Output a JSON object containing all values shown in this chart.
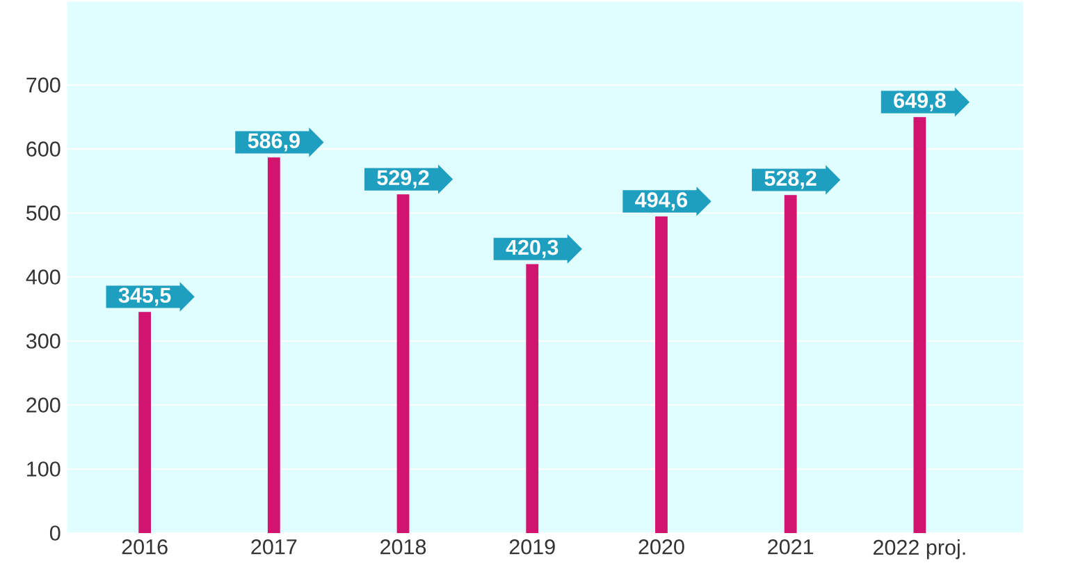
{
  "chart_data": {
    "type": "bar",
    "categories": [
      "2016",
      "2017",
      "2018",
      "2019",
      "2020",
      "2021",
      "2022 proj."
    ],
    "values": [
      345.5,
      586.9,
      529.2,
      420.3,
      494.6,
      528.2,
      649.8
    ],
    "value_labels": [
      "345,5",
      "586,9",
      "529,2",
      "420,3",
      "494,6",
      "528,2",
      "649,8"
    ],
    "color": "#d1156f",
    "ylim": [
      0,
      830
    ],
    "yticks": [
      0,
      100,
      200,
      300,
      400,
      500,
      600,
      700
    ],
    "grid": "y"
  }
}
